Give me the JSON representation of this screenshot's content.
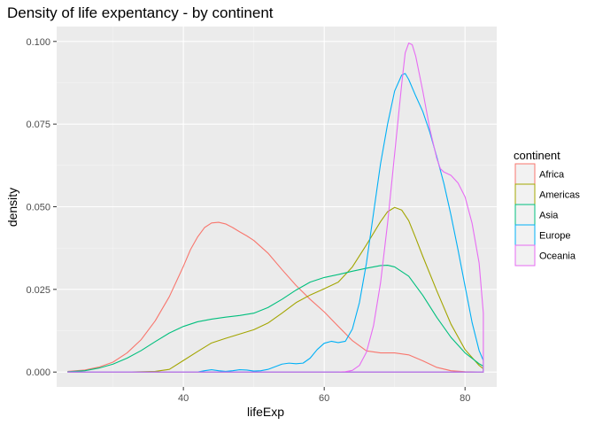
{
  "chart_data": {
    "type": "line",
    "title": "Density of life expentancy - by continent",
    "xlabel": "lifeExp",
    "ylabel": "density",
    "xlim": [
      22,
      84.5
    ],
    "ylim": [
      -0.0045,
      0.1045
    ],
    "x_ticks": [
      40,
      60,
      80
    ],
    "x_tick_labels": [
      "40",
      "60",
      "80"
    ],
    "y_ticks": [
      0,
      0.025,
      0.05,
      0.075,
      0.1
    ],
    "y_tick_labels": [
      "0.000",
      "0.025",
      "0.050",
      "0.075",
      "0.100"
    ],
    "grid": true,
    "legend": {
      "title": "continent",
      "placement": "right"
    },
    "series": [
      {
        "name": "Africa",
        "color": "#F8766D",
        "points": [
          [
            23.6,
            0.0002
          ],
          [
            26,
            0.0006
          ],
          [
            28,
            0.0015
          ],
          [
            30,
            0.003
          ],
          [
            32,
            0.0058
          ],
          [
            34,
            0.0098
          ],
          [
            36,
            0.0155
          ],
          [
            38,
            0.0228
          ],
          [
            40,
            0.032
          ],
          [
            41,
            0.037
          ],
          [
            42,
            0.0408
          ],
          [
            43,
            0.0437
          ],
          [
            44,
            0.0451
          ],
          [
            45,
            0.0453
          ],
          [
            46,
            0.0448
          ],
          [
            47,
            0.0437
          ],
          [
            48,
            0.0424
          ],
          [
            49,
            0.0412
          ],
          [
            50,
            0.0398
          ],
          [
            52,
            0.036
          ],
          [
            54,
            0.031
          ],
          [
            56,
            0.0262
          ],
          [
            58,
            0.022
          ],
          [
            60,
            0.0182
          ],
          [
            62,
            0.0138
          ],
          [
            64,
            0.0095
          ],
          [
            66,
            0.0064
          ],
          [
            68,
            0.0058
          ],
          [
            70,
            0.0058
          ],
          [
            72,
            0.0052
          ],
          [
            74,
            0.0034
          ],
          [
            76,
            0.0014
          ],
          [
            78,
            0.0004
          ],
          [
            80,
            0.0001
          ],
          [
            82.6,
            0
          ]
        ]
      },
      {
        "name": "Americas",
        "color": "#A3A500",
        "points": [
          [
            23.6,
            0
          ],
          [
            32,
            0
          ],
          [
            36,
            0.0002
          ],
          [
            38,
            0.0008
          ],
          [
            40,
            0.0035
          ],
          [
            42,
            0.0062
          ],
          [
            44,
            0.0088
          ],
          [
            46,
            0.0102
          ],
          [
            48,
            0.0115
          ],
          [
            50,
            0.0128
          ],
          [
            52,
            0.0148
          ],
          [
            54,
            0.0178
          ],
          [
            56,
            0.021
          ],
          [
            58,
            0.0233
          ],
          [
            60,
            0.0252
          ],
          [
            62,
            0.0272
          ],
          [
            64,
            0.0318
          ],
          [
            66,
            0.0385
          ],
          [
            68,
            0.0455
          ],
          [
            69,
            0.0485
          ],
          [
            70,
            0.0498
          ],
          [
            71,
            0.049
          ],
          [
            72,
            0.0458
          ],
          [
            73,
            0.0405
          ],
          [
            74,
            0.035
          ],
          [
            76,
            0.0245
          ],
          [
            78,
            0.0145
          ],
          [
            80,
            0.0068
          ],
          [
            82,
            0.002
          ],
          [
            82.6,
            0.001
          ]
        ]
      },
      {
        "name": "Asia",
        "color": "#00BF7D",
        "points": [
          [
            23.6,
            0.0001
          ],
          [
            26,
            0.0004
          ],
          [
            28,
            0.0012
          ],
          [
            30,
            0.0024
          ],
          [
            32,
            0.0042
          ],
          [
            34,
            0.0065
          ],
          [
            36,
            0.0092
          ],
          [
            38,
            0.0118
          ],
          [
            40,
            0.0138
          ],
          [
            42,
            0.0152
          ],
          [
            44,
            0.016
          ],
          [
            46,
            0.0166
          ],
          [
            48,
            0.0171
          ],
          [
            50,
            0.0178
          ],
          [
            52,
            0.0195
          ],
          [
            54,
            0.022
          ],
          [
            56,
            0.0248
          ],
          [
            58,
            0.0272
          ],
          [
            60,
            0.0286
          ],
          [
            62,
            0.0295
          ],
          [
            64,
            0.0305
          ],
          [
            66,
            0.0314
          ],
          [
            68,
            0.0322
          ],
          [
            69,
            0.0323
          ],
          [
            70,
            0.0318
          ],
          [
            72,
            0.029
          ],
          [
            74,
            0.0232
          ],
          [
            76,
            0.0165
          ],
          [
            78,
            0.0105
          ],
          [
            80,
            0.0058
          ],
          [
            82,
            0.0025
          ],
          [
            82.6,
            0.0018
          ]
        ]
      },
      {
        "name": "Europe",
        "color": "#00B0F6",
        "points": [
          [
            23.6,
            0
          ],
          [
            40,
            0
          ],
          [
            42,
            0
          ],
          [
            43,
            0.0004
          ],
          [
            44,
            0.0007
          ],
          [
            45,
            0.0004
          ],
          [
            46,
            0.0002
          ],
          [
            47,
            0.0004
          ],
          [
            48,
            0.0007
          ],
          [
            49,
            0.0006
          ],
          [
            50,
            0.0003
          ],
          [
            51,
            0.0004
          ],
          [
            52,
            0.0008
          ],
          [
            53,
            0.0016
          ],
          [
            54,
            0.0024
          ],
          [
            55,
            0.0027
          ],
          [
            56,
            0.0025
          ],
          [
            57,
            0.0027
          ],
          [
            58,
            0.0042
          ],
          [
            59,
            0.0068
          ],
          [
            60,
            0.0087
          ],
          [
            61,
            0.0093
          ],
          [
            62,
            0.0089
          ],
          [
            63,
            0.0093
          ],
          [
            64,
            0.013
          ],
          [
            65,
            0.021
          ],
          [
            66,
            0.033
          ],
          [
            67,
            0.048
          ],
          [
            68,
            0.063
          ],
          [
            69,
            0.075
          ],
          [
            70,
            0.085
          ],
          [
            71,
            0.0898
          ],
          [
            71.5,
            0.0903
          ],
          [
            72,
            0.0885
          ],
          [
            73,
            0.0835
          ],
          [
            74,
            0.0788
          ],
          [
            75,
            0.0725
          ],
          [
            76,
            0.065
          ],
          [
            77,
            0.057
          ],
          [
            78,
            0.0475
          ],
          [
            79,
            0.037
          ],
          [
            80,
            0.026
          ],
          [
            81,
            0.015
          ],
          [
            82,
            0.0065
          ],
          [
            82.6,
            0.0035
          ]
        ]
      },
      {
        "name": "Oceania",
        "color": "#E76BF3",
        "points": [
          [
            23.6,
            0
          ],
          [
            62,
            0
          ],
          [
            63,
            0.0001
          ],
          [
            64,
            0.0005
          ],
          [
            65,
            0.002
          ],
          [
            66,
            0.006
          ],
          [
            67,
            0.014
          ],
          [
            68,
            0.027
          ],
          [
            69,
            0.045
          ],
          [
            70,
            0.066
          ],
          [
            71,
            0.087
          ],
          [
            71.5,
            0.0965
          ],
          [
            72,
            0.0995
          ],
          [
            72.5,
            0.099
          ],
          [
            73,
            0.0955
          ],
          [
            74,
            0.085
          ],
          [
            75,
            0.0735
          ],
          [
            76,
            0.0645
          ],
          [
            76.5,
            0.0615
          ],
          [
            77,
            0.0605
          ],
          [
            78,
            0.0595
          ],
          [
            79,
            0.0572
          ],
          [
            80,
            0.053
          ],
          [
            81,
            0.045
          ],
          [
            82,
            0.033
          ],
          [
            82.6,
            0.0178
          ]
        ]
      }
    ]
  }
}
